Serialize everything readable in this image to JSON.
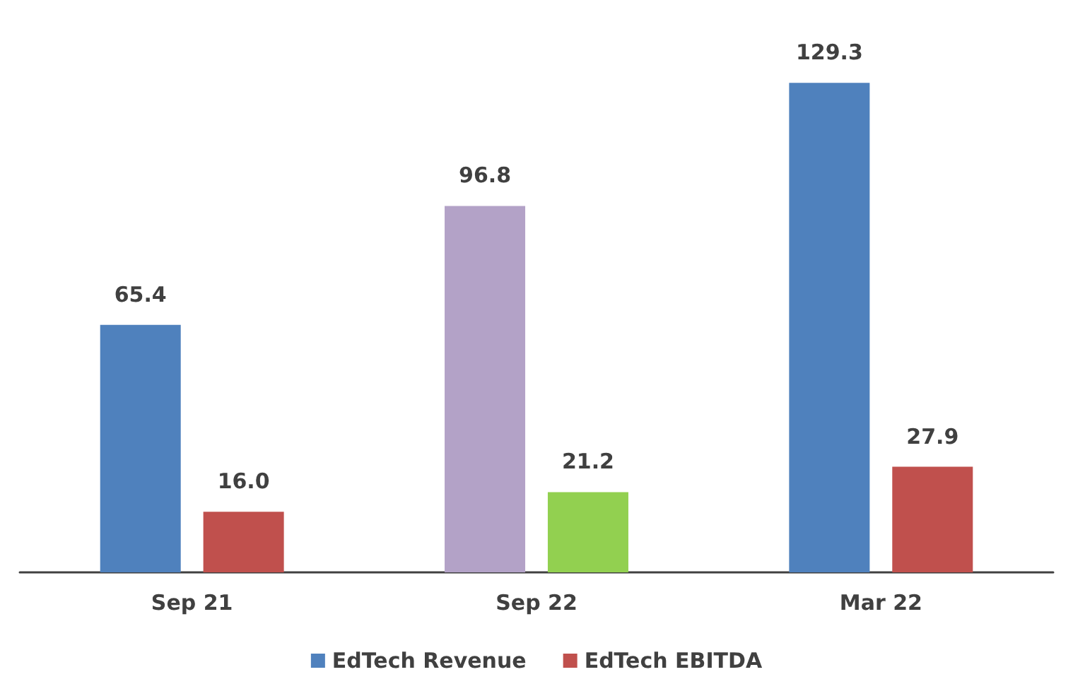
{
  "chart_data": {
    "type": "bar",
    "categories": [
      "Sep 21",
      "Sep 22",
      "Mar 22"
    ],
    "series": [
      {
        "name": "EdTech Revenue",
        "color": "#4f81bd",
        "colors": [
          "#4f81bd",
          "#b3a2c7",
          "#4f81bd"
        ],
        "values": [
          65.4,
          96.8,
          129.3
        ],
        "value_labels": [
          "65.4",
          "96.8",
          "129.3"
        ]
      },
      {
        "name": "EdTech EBITDA",
        "color": "#c0504d",
        "colors": [
          "#c0504d",
          "#92d050",
          "#c0504d"
        ],
        "values": [
          16.0,
          21.2,
          27.9
        ],
        "value_labels": [
          "16.0",
          "21.2",
          "27.9"
        ]
      }
    ],
    "legend": "bottom",
    "grid": false
  }
}
